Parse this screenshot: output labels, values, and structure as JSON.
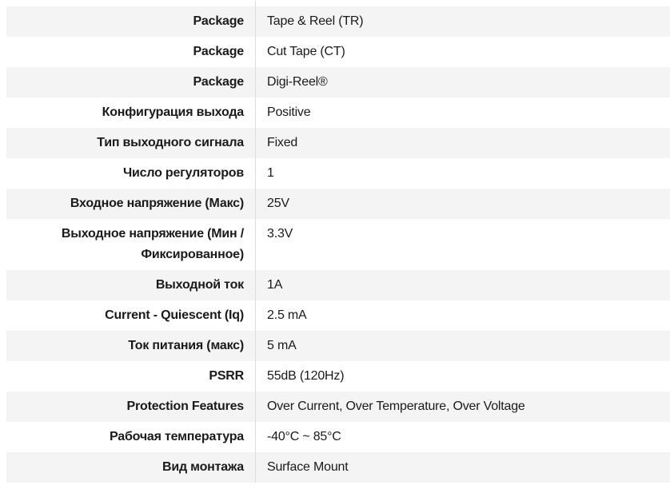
{
  "table": {
    "name": "product-attributes",
    "rows": [
      {
        "label": "Package",
        "value": "Tape & Reel (TR)"
      },
      {
        "label": "Package",
        "value": "Cut Tape (CT)"
      },
      {
        "label": "Package",
        "value": "Digi-Reel®"
      },
      {
        "label": "Конфигурация выхода",
        "value": "Positive"
      },
      {
        "label": "Тип выходного сигнала",
        "value": "Fixed"
      },
      {
        "label": "Число регуляторов",
        "value": "1"
      },
      {
        "label": "Входное напряжение (Макс)",
        "value": "25V"
      },
      {
        "label": "Выходное напряжение (Мин / Фиксированное)",
        "value": "3.3V"
      },
      {
        "label": "Выходной ток",
        "value": "1A"
      },
      {
        "label": "Current - Quiescent (Iq)",
        "value": "2.5 mA"
      },
      {
        "label": "Ток питания (макс)",
        "value": "5 mA"
      },
      {
        "label": "PSRR",
        "value": "55dB (120Hz)"
      },
      {
        "label": "Protection Features",
        "value": "Over Current, Over Temperature, Over Voltage"
      },
      {
        "label": "Рабочая температура",
        "value": "-40°C ~ 85°C"
      },
      {
        "label": "Вид монтажа",
        "value": "Surface Mount"
      }
    ],
    "colors": {
      "row_alt_bg": "#f4f4f4",
      "row_bg": "#ffffff",
      "divider": "#dddddd",
      "text": "#1a1a1a"
    }
  }
}
